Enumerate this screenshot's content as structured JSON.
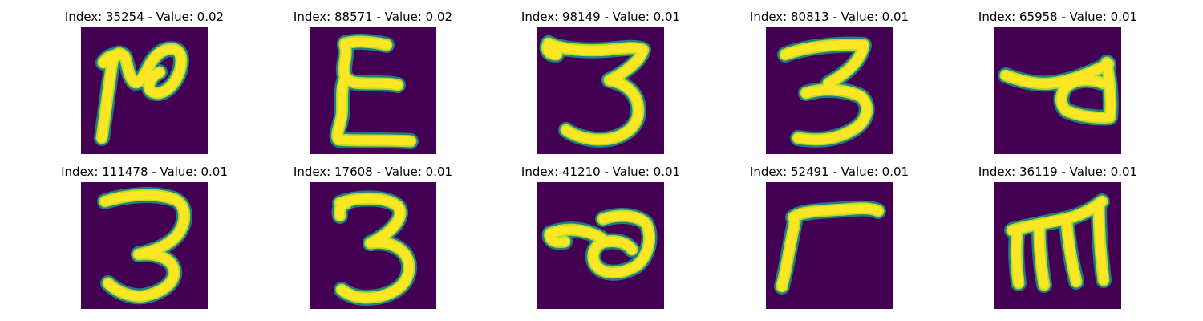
{
  "figure": {
    "panels": [
      {
        "title": "Index: 35254 - Value: 0.02",
        "index": 35254,
        "value": 0.02,
        "glyph": "handwritten-loop-glyph"
      },
      {
        "title": "Index: 88571 - Value: 0.02",
        "index": 88571,
        "value": 0.02,
        "glyph": "handwritten-sigma-glyph"
      },
      {
        "title": "Index: 98149 - Value: 0.01",
        "index": 98149,
        "value": 0.01,
        "glyph": "handwritten-three-glyph"
      },
      {
        "title": "Index: 80813 - Value: 0.01",
        "index": 80813,
        "value": 0.01,
        "glyph": "handwritten-three-glyph"
      },
      {
        "title": "Index: 65958 - Value: 0.01",
        "index": 65958,
        "value": 0.01,
        "glyph": "handwritten-loop-glyph"
      },
      {
        "title": "Index: 111478 - Value: 0.01",
        "index": 111478,
        "value": 0.01,
        "glyph": "handwritten-three-glyph"
      },
      {
        "title": "Index: 17608 - Value: 0.01",
        "index": 17608,
        "value": 0.01,
        "glyph": "handwritten-three-glyph"
      },
      {
        "title": "Index: 41210 - Value: 0.01",
        "index": 41210,
        "value": 0.01,
        "glyph": "handwritten-loop-glyph"
      },
      {
        "title": "Index: 52491 - Value: 0.01",
        "index": 52491,
        "value": 0.01,
        "glyph": "handwritten-r-glyph"
      },
      {
        "title": "Index: 36119 - Value: 0.01",
        "index": 36119,
        "value": 0.01,
        "glyph": "handwritten-m-glyph"
      }
    ]
  },
  "colors": {
    "background": "#440154",
    "stroke_core": "#fde725",
    "stroke_edge": "#21918c",
    "stroke_mid": "#b5de2b"
  }
}
